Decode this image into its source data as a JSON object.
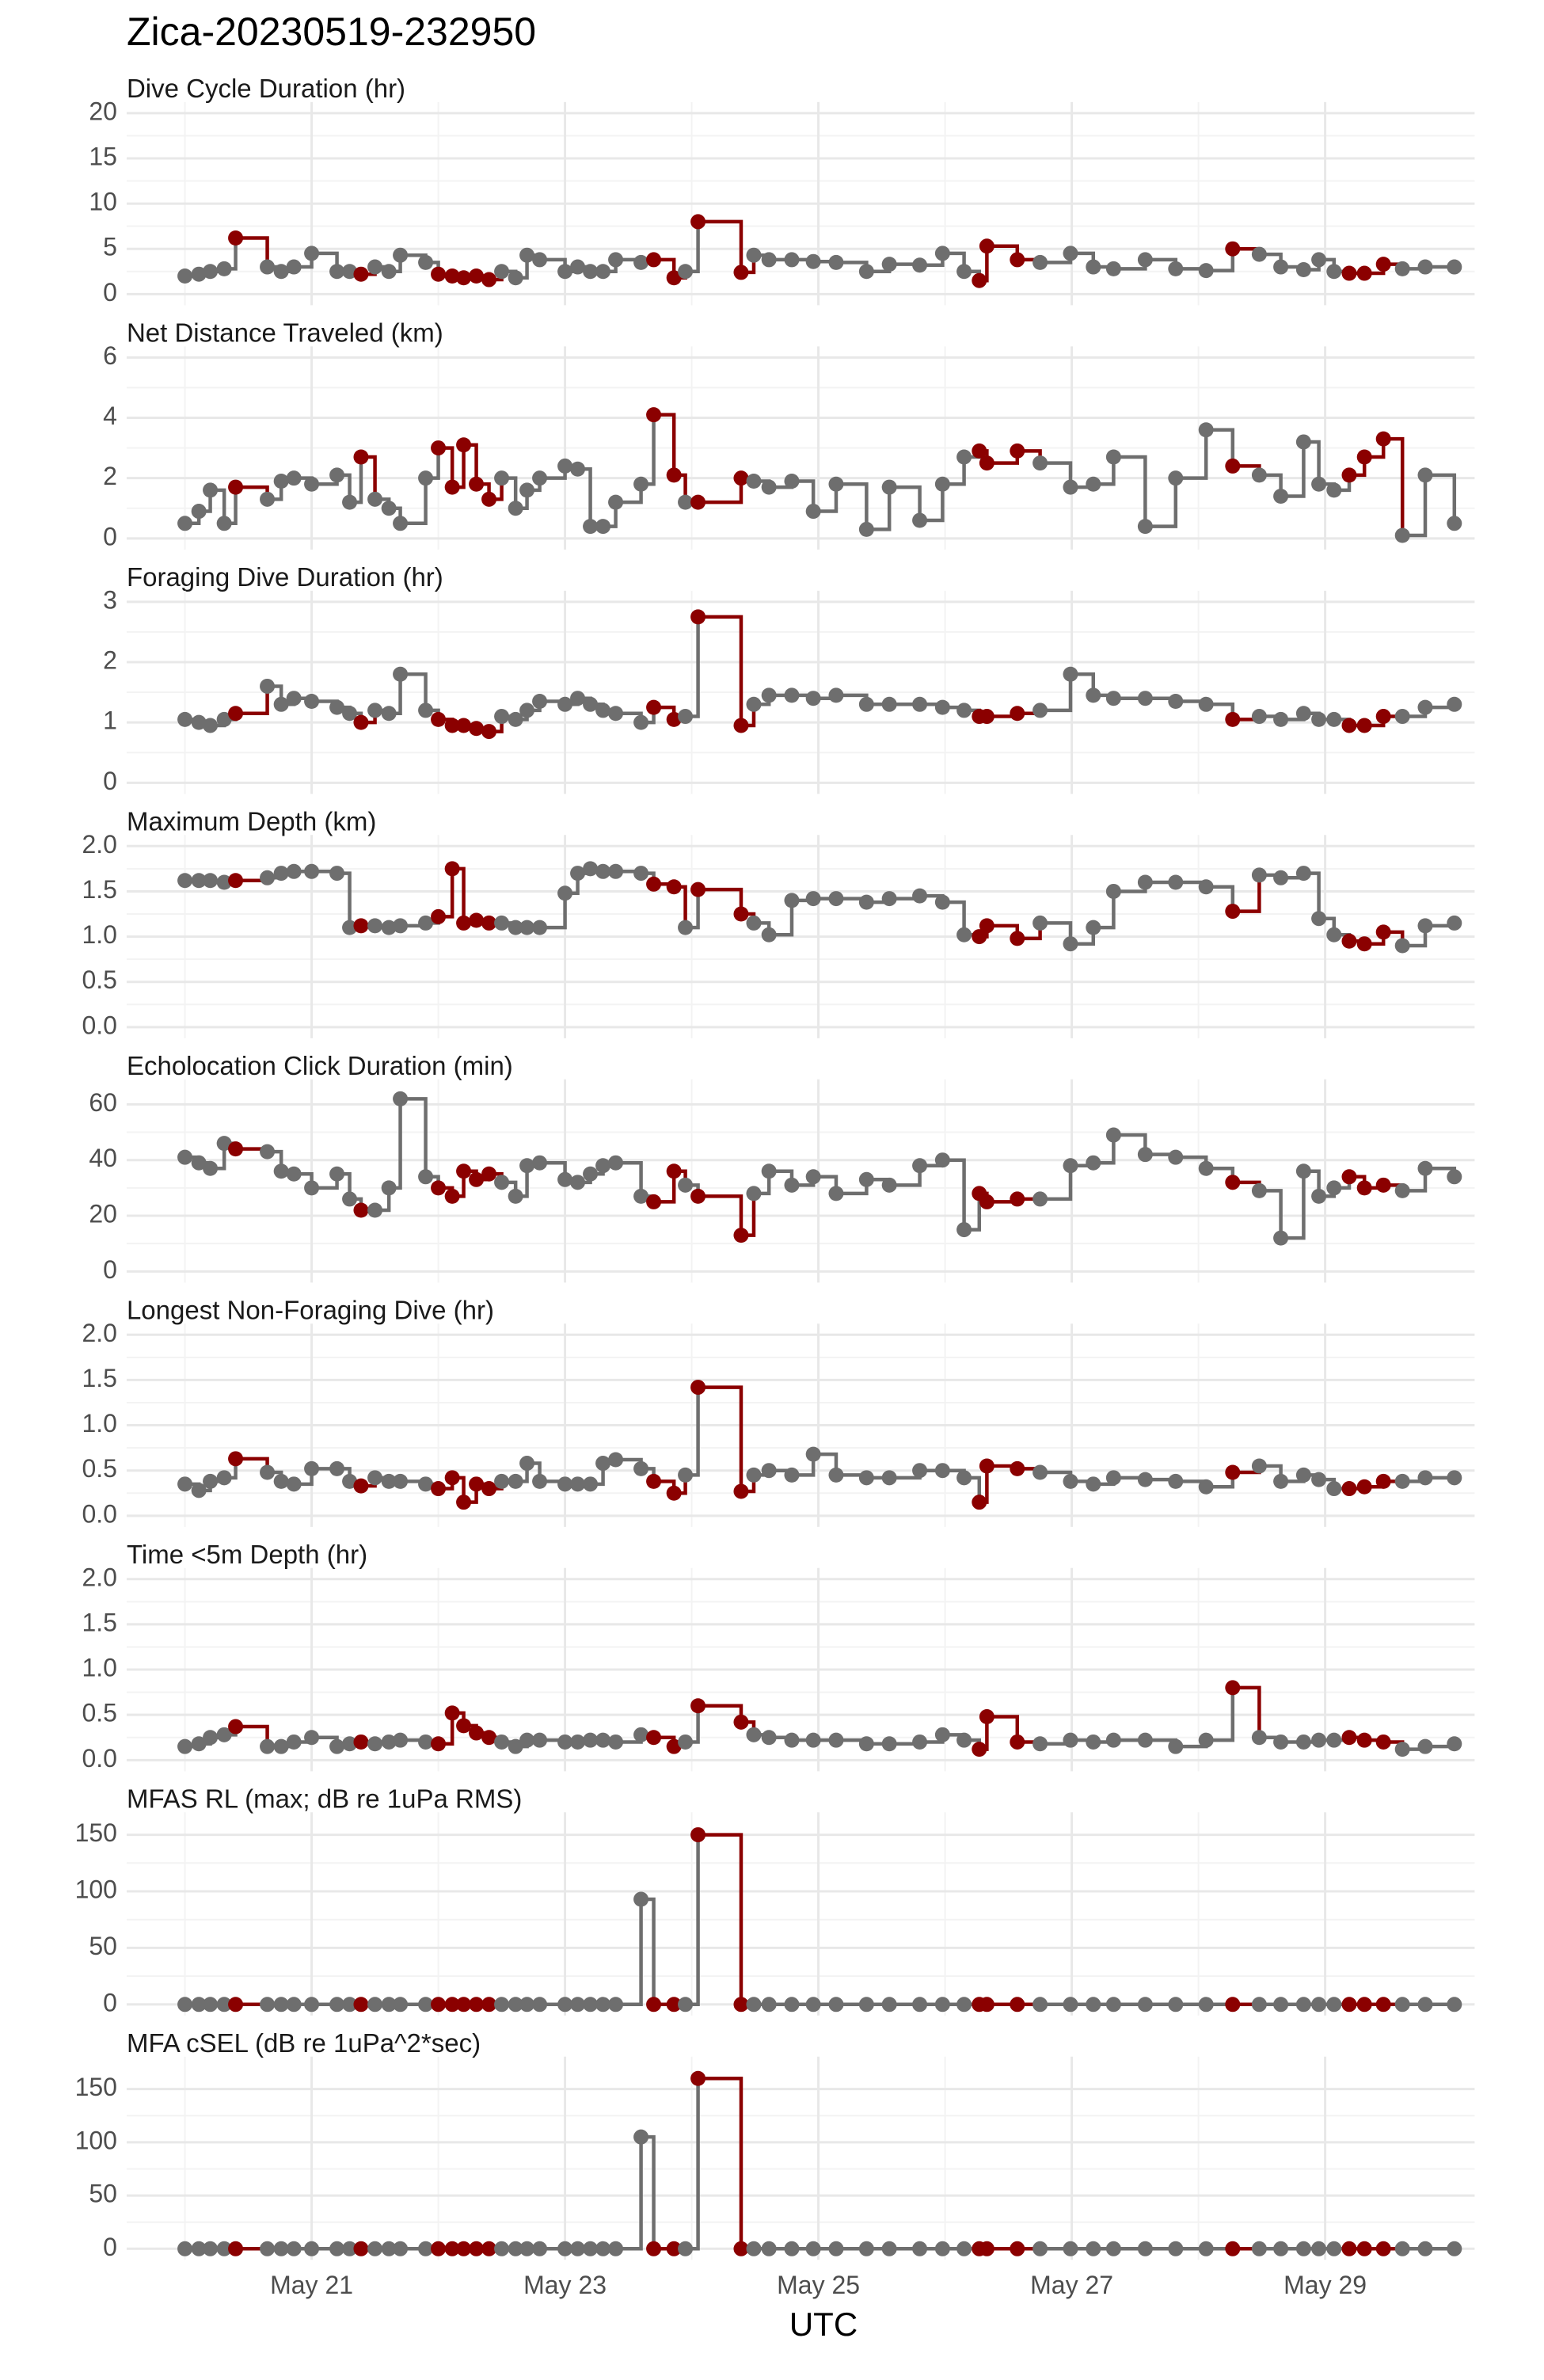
{
  "chart_data": {
    "type": "step",
    "title": "Zica-20230519-232950",
    "xlabel": "UTC",
    "xlim": [
      19.54,
      30.18
    ],
    "xticks": [
      {
        "value": 21,
        "label": "May 21"
      },
      {
        "value": 23,
        "label": "May 23"
      },
      {
        "value": 25,
        "label": "May 25"
      },
      {
        "value": 27,
        "label": "May 27"
      },
      {
        "value": 29,
        "label": "May 29"
      }
    ],
    "grid": true,
    "x": [
      20.0,
      20.11,
      20.2,
      20.31,
      20.4,
      20.65,
      20.76,
      20.86,
      21.0,
      21.2,
      21.3,
      21.39,
      21.5,
      21.61,
      21.7,
      21.9,
      22.0,
      22.11,
      22.2,
      22.3,
      22.4,
      22.5,
      22.61,
      22.7,
      22.8,
      23.0,
      23.1,
      23.2,
      23.3,
      23.4,
      23.6,
      23.7,
      23.86,
      23.95,
      24.05,
      24.39,
      24.49,
      24.61,
      24.79,
      24.96,
      25.14,
      25.38,
      25.56,
      25.8,
      25.98,
      26.15,
      26.27,
      26.33,
      26.57,
      26.75,
      26.99,
      27.17,
      27.33,
      27.58,
      27.82,
      28.06,
      28.27,
      28.48,
      28.65,
      28.83,
      28.95,
      29.07,
      29.19,
      29.31,
      29.46,
      29.61,
      29.79,
      30.02
    ],
    "point_colors": [
      "#6e6e6e",
      "#6e6e6e",
      "#6e6e6e",
      "#6e6e6e",
      "#8b0000",
      "#6e6e6e",
      "#6e6e6e",
      "#6e6e6e",
      "#6e6e6e",
      "#6e6e6e",
      "#6e6e6e",
      "#8b0000",
      "#6e6e6e",
      "#6e6e6e",
      "#6e6e6e",
      "#6e6e6e",
      "#8b0000",
      "#8b0000",
      "#8b0000",
      "#8b0000",
      "#8b0000",
      "#6e6e6e",
      "#6e6e6e",
      "#6e6e6e",
      "#6e6e6e",
      "#6e6e6e",
      "#6e6e6e",
      "#6e6e6e",
      "#6e6e6e",
      "#6e6e6e",
      "#6e6e6e",
      "#8b0000",
      "#8b0000",
      "#6e6e6e",
      "#8b0000",
      "#8b0000",
      "#6e6e6e",
      "#6e6e6e",
      "#6e6e6e",
      "#6e6e6e",
      "#6e6e6e",
      "#6e6e6e",
      "#6e6e6e",
      "#6e6e6e",
      "#6e6e6e",
      "#6e6e6e",
      "#8b0000",
      "#8b0000",
      "#8b0000",
      "#6e6e6e",
      "#6e6e6e",
      "#6e6e6e",
      "#6e6e6e",
      "#6e6e6e",
      "#6e6e6e",
      "#6e6e6e",
      "#8b0000",
      "#6e6e6e",
      "#6e6e6e",
      "#6e6e6e",
      "#6e6e6e",
      "#6e6e6e",
      "#8b0000",
      "#8b0000",
      "#8b0000",
      "#6e6e6e",
      "#6e6e6e",
      "#6e6e6e"
    ],
    "panels": [
      {
        "title": "Dive Cycle Duration (hr)",
        "ylim": [
          0,
          20
        ],
        "yticks": [
          0,
          5,
          10,
          15,
          20
        ],
        "values": [
          2,
          2.2,
          2.5,
          2.8,
          6.2,
          3,
          2.5,
          3,
          4.5,
          2.5,
          2.5,
          2.2,
          3,
          2.5,
          4.3,
          3.5,
          2.2,
          2,
          1.8,
          2,
          1.6,
          2.5,
          1.8,
          4.3,
          3.8,
          2.5,
          3,
          2.5,
          2.5,
          3.8,
          3.5,
          3.8,
          1.8,
          2.5,
          8,
          2.4,
          4.3,
          3.8,
          3.8,
          3.6,
          3.5,
          2.5,
          3.3,
          3.2,
          4.5,
          2.5,
          1.5,
          5.3,
          3.8,
          3.5,
          4.5,
          3,
          2.8,
          3.8,
          2.8,
          2.6,
          5,
          4.4,
          3,
          2.7,
          3.8,
          2.5,
          2.3,
          2.3,
          3.3,
          2.8,
          3,
          3
        ]
      },
      {
        "title": "Net Distance Traveled (km)",
        "ylim": [
          0,
          6
        ],
        "yticks": [
          0,
          2,
          4,
          6
        ],
        "values": [
          0.5,
          0.9,
          1.6,
          0.5,
          1.7,
          1.3,
          1.9,
          2,
          1.8,
          2.1,
          1.2,
          2.7,
          1.3,
          1.0,
          0.5,
          2.0,
          3.0,
          1.7,
          3.1,
          1.8,
          1.3,
          2.0,
          1.0,
          1.6,
          2.0,
          2.4,
          2.3,
          0.4,
          0.4,
          1.2,
          1.8,
          4.1,
          2.1,
          1.2,
          1.2,
          2.0,
          1.9,
          1.7,
          1.9,
          0.9,
          1.8,
          0.3,
          1.7,
          0.6,
          1.8,
          2.7,
          2.9,
          2.5,
          2.9,
          2.5,
          1.7,
          1.8,
          2.7,
          0.4,
          2.0,
          3.6,
          2.4,
          2.1,
          1.4,
          3.2,
          1.8,
          1.6,
          2.1,
          2.7,
          3.3,
          0.1,
          2.1,
          0.5
        ]
      },
      {
        "title": "Foraging Dive Duration (hr)",
        "ylim": [
          0,
          3
        ],
        "yticks": [
          0,
          1,
          2,
          3
        ],
        "values": [
          1.05,
          1.0,
          0.95,
          1.05,
          1.15,
          1.6,
          1.3,
          1.4,
          1.35,
          1.25,
          1.15,
          1.0,
          1.2,
          1.15,
          1.8,
          1.2,
          1.05,
          0.95,
          0.95,
          0.9,
          0.85,
          1.1,
          1.05,
          1.2,
          1.35,
          1.3,
          1.4,
          1.3,
          1.2,
          1.15,
          1.0,
          1.25,
          1.05,
          1.1,
          2.75,
          0.95,
          1.3,
          1.45,
          1.45,
          1.4,
          1.45,
          1.3,
          1.3,
          1.3,
          1.25,
          1.2,
          1.1,
          1.1,
          1.15,
          1.2,
          1.8,
          1.45,
          1.4,
          1.4,
          1.35,
          1.3,
          1.05,
          1.1,
          1.05,
          1.15,
          1.05,
          1.05,
          0.95,
          0.95,
          1.1,
          1.1,
          1.25,
          1.3
        ]
      },
      {
        "title": "Maximum Depth (km)",
        "ylim": [
          0,
          2
        ],
        "yticks": [
          {
            "value": 0,
            "label": "0.0"
          },
          0.5,
          {
            "value": 1,
            "label": "1.0"
          },
          1.5,
          {
            "value": 2,
            "label": "2.0"
          }
        ],
        "values": [
          1.62,
          1.62,
          1.62,
          1.6,
          1.62,
          1.65,
          1.7,
          1.72,
          1.72,
          1.7,
          1.1,
          1.12,
          1.12,
          1.1,
          1.12,
          1.15,
          1.22,
          1.75,
          1.15,
          1.18,
          1.15,
          1.15,
          1.1,
          1.1,
          1.1,
          1.48,
          1.7,
          1.75,
          1.72,
          1.72,
          1.7,
          1.58,
          1.55,
          1.1,
          1.52,
          1.25,
          1.15,
          1.02,
          1.4,
          1.42,
          1.42,
          1.38,
          1.42,
          1.45,
          1.38,
          1.02,
          1.0,
          1.12,
          0.98,
          1.15,
          0.92,
          1.1,
          1.5,
          1.6,
          1.6,
          1.55,
          1.28,
          1.68,
          1.65,
          1.7,
          1.2,
          1.02,
          0.95,
          0.92,
          1.05,
          0.9,
          1.12,
          1.15
        ]
      },
      {
        "title": "Echolocation Click Duration (min)",
        "ylim": [
          0,
          65
        ],
        "yticks": [
          0,
          20,
          40,
          60
        ],
        "values": [
          41,
          39,
          37,
          46,
          44,
          43,
          36,
          35,
          30,
          35,
          26,
          22,
          22,
          30,
          62,
          34,
          30,
          27,
          36,
          33,
          35,
          32,
          27,
          38,
          39,
          33,
          32,
          35,
          38,
          39,
          27,
          25,
          36,
          31,
          27,
          13,
          28,
          36,
          31,
          34,
          28,
          33,
          31,
          38,
          40,
          15,
          28,
          25,
          26,
          26,
          38,
          39,
          49,
          42,
          41,
          37,
          32,
          29,
          12,
          36,
          27,
          30,
          34,
          30,
          31,
          29,
          37,
          34
        ]
      },
      {
        "title": "Longest Non-Foraging Dive (hr)",
        "ylim": [
          0,
          2
        ],
        "yticks": [
          {
            "value": 0,
            "label": "0.0"
          },
          0.5,
          {
            "value": 1,
            "label": "1.0"
          },
          1.5,
          {
            "value": 2,
            "label": "2.0"
          }
        ],
        "values": [
          0.35,
          0.28,
          0.38,
          0.42,
          0.63,
          0.48,
          0.38,
          0.35,
          0.52,
          0.52,
          0.38,
          0.33,
          0.42,
          0.38,
          0.38,
          0.35,
          0.3,
          0.42,
          0.15,
          0.35,
          0.3,
          0.38,
          0.38,
          0.58,
          0.38,
          0.35,
          0.35,
          0.35,
          0.58,
          0.62,
          0.52,
          0.38,
          0.25,
          0.45,
          1.42,
          0.27,
          0.45,
          0.5,
          0.45,
          0.68,
          0.45,
          0.42,
          0.42,
          0.5,
          0.5,
          0.42,
          0.15,
          0.55,
          0.52,
          0.48,
          0.38,
          0.35,
          0.42,
          0.4,
          0.38,
          0.32,
          0.48,
          0.55,
          0.38,
          0.45,
          0.4,
          0.3,
          0.3,
          0.32,
          0.38,
          0.38,
          0.42,
          0.42
        ]
      },
      {
        "title": "Time <5m Depth (hr)",
        "ylim": [
          0,
          2
        ],
        "yticks": [
          {
            "value": 0,
            "label": "0.0"
          },
          0.5,
          {
            "value": 1,
            "label": "1.0"
          },
          1.5,
          {
            "value": 2,
            "label": "2.0"
          }
        ],
        "values": [
          0.15,
          0.18,
          0.25,
          0.28,
          0.37,
          0.15,
          0.15,
          0.2,
          0.25,
          0.15,
          0.18,
          0.2,
          0.18,
          0.2,
          0.22,
          0.2,
          0.18,
          0.52,
          0.38,
          0.3,
          0.25,
          0.2,
          0.15,
          0.22,
          0.22,
          0.2,
          0.2,
          0.22,
          0.22,
          0.2,
          0.28,
          0.25,
          0.15,
          0.2,
          0.6,
          0.42,
          0.28,
          0.25,
          0.22,
          0.22,
          0.22,
          0.18,
          0.18,
          0.2,
          0.28,
          0.22,
          0.12,
          0.48,
          0.2,
          0.18,
          0.22,
          0.2,
          0.22,
          0.22,
          0.15,
          0.22,
          0.8,
          0.25,
          0.2,
          0.2,
          0.22,
          0.22,
          0.25,
          0.22,
          0.2,
          0.12,
          0.15,
          0.18
        ]
      },
      {
        "title": "MFAS RL (max; dB re 1uPa RMS)",
        "ylim": [
          0,
          160
        ],
        "yticks": [
          0,
          50,
          100,
          150
        ],
        "values": [
          0,
          0,
          0,
          0,
          0,
          0,
          0,
          0,
          0,
          0,
          0,
          0,
          0,
          0,
          0,
          0,
          0,
          0,
          0,
          0,
          0,
          0,
          0,
          0,
          0,
          0,
          0,
          0,
          0,
          0,
          93,
          0,
          0,
          0,
          150,
          0,
          0,
          0,
          0,
          0,
          0,
          0,
          0,
          0,
          0,
          0,
          0,
          0,
          0,
          0,
          0,
          0,
          0,
          0,
          0,
          0,
          0,
          0,
          0,
          0,
          0,
          0,
          0,
          0,
          0,
          0,
          0,
          0
        ]
      },
      {
        "title": "MFA cSEL (dB re 1uPa^2*sec)",
        "ylim": [
          0,
          170
        ],
        "yticks": [
          0,
          50,
          100,
          150
        ],
        "values": [
          0,
          0,
          0,
          0,
          0,
          0,
          0,
          0,
          0,
          0,
          0,
          0,
          0,
          0,
          0,
          0,
          0,
          0,
          0,
          0,
          0,
          0,
          0,
          0,
          0,
          0,
          0,
          0,
          0,
          0,
          105,
          0,
          0,
          0,
          160,
          0,
          0,
          0,
          0,
          0,
          0,
          0,
          0,
          0,
          0,
          0,
          0,
          0,
          0,
          0,
          0,
          0,
          0,
          0,
          0,
          0,
          0,
          0,
          0,
          0,
          0,
          0,
          0,
          0,
          0,
          0,
          0,
          0
        ]
      }
    ]
  }
}
